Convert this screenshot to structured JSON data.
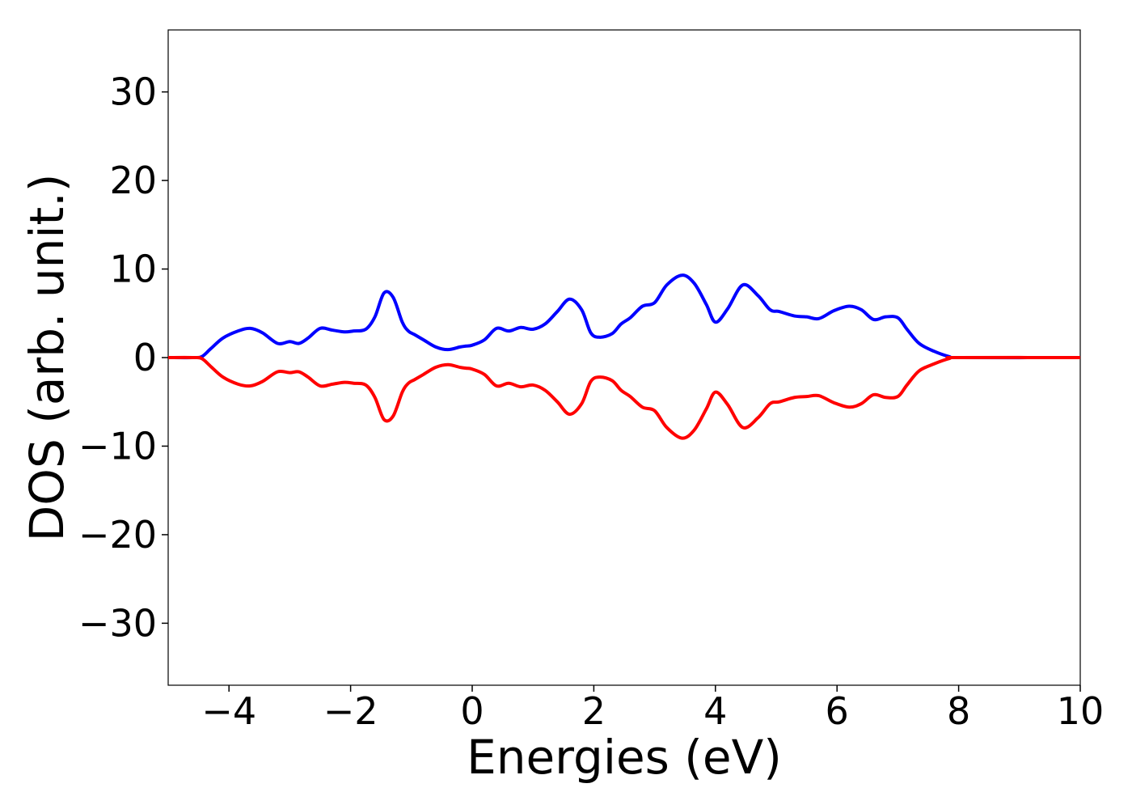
{
  "chart_data": {
    "type": "line",
    "xlabel": "Energies (eV)",
    "ylabel": "DOS (arb. unit.)",
    "xlim": [
      -5,
      10
    ],
    "ylim": [
      -37,
      37
    ],
    "grid": false,
    "xticks": [
      -4,
      -2,
      0,
      2,
      4,
      6,
      8,
      10
    ],
    "xtick_labels": [
      "−4",
      "−2",
      "0",
      "2",
      "4",
      "6",
      "8",
      "10"
    ],
    "yticks": [
      -30,
      -20,
      -10,
      0,
      10,
      20,
      30
    ],
    "ytick_labels": [
      "−30",
      "−20",
      "−10",
      "0",
      "10",
      "20",
      "30"
    ],
    "series": [
      {
        "color": "#0000ff",
        "x": [
          -5.0,
          -4.6,
          -4.45,
          -4.3,
          -4.1,
          -3.85,
          -3.65,
          -3.45,
          -3.2,
          -3.0,
          -2.85,
          -2.7,
          -2.5,
          -2.3,
          -2.1,
          -1.95,
          -1.75,
          -1.6,
          -1.45,
          -1.3,
          -1.15,
          -1.05,
          -0.95,
          -0.8,
          -0.6,
          -0.4,
          -0.2,
          -0.1,
          0.0,
          0.2,
          0.4,
          0.6,
          0.8,
          1.0,
          1.2,
          1.4,
          1.6,
          1.8,
          1.95,
          2.1,
          2.3,
          2.45,
          2.6,
          2.8,
          3.0,
          3.2,
          3.45,
          3.65,
          3.85,
          4.0,
          4.2,
          4.45,
          4.7,
          4.9,
          5.05,
          5.3,
          5.5,
          5.7,
          5.95,
          6.2,
          6.4,
          6.6,
          6.8,
          7.0,
          7.15,
          7.35,
          7.6,
          7.85,
          8.0,
          10.0
        ],
        "values": [
          0,
          0,
          0.1,
          1.0,
          2.2,
          3.0,
          3.3,
          2.8,
          1.6,
          1.8,
          1.6,
          2.2,
          3.3,
          3.1,
          2.9,
          3.0,
          3.2,
          4.6,
          7.3,
          6.8,
          4.0,
          3.0,
          2.6,
          2.0,
          1.2,
          0.9,
          1.2,
          1.3,
          1.4,
          2.0,
          3.3,
          3.0,
          3.4,
          3.2,
          3.8,
          5.2,
          6.6,
          5.4,
          2.8,
          2.3,
          2.7,
          3.8,
          4.5,
          5.8,
          6.2,
          8.2,
          9.3,
          8.4,
          6.0,
          4.0,
          5.5,
          8.2,
          7.0,
          5.4,
          5.2,
          4.7,
          4.6,
          4.4,
          5.3,
          5.8,
          5.4,
          4.3,
          4.6,
          4.5,
          3.2,
          1.6,
          0.7,
          0.1,
          0,
          0
        ]
      },
      {
        "color": "#ff0000",
        "x": [
          -5.0,
          -4.6,
          -4.45,
          -4.3,
          -4.1,
          -3.85,
          -3.65,
          -3.45,
          -3.2,
          -3.0,
          -2.85,
          -2.7,
          -2.5,
          -2.3,
          -2.1,
          -1.95,
          -1.75,
          -1.6,
          -1.45,
          -1.3,
          -1.15,
          -1.05,
          -0.95,
          -0.8,
          -0.6,
          -0.4,
          -0.2,
          -0.1,
          0.0,
          0.2,
          0.4,
          0.6,
          0.8,
          1.0,
          1.2,
          1.4,
          1.6,
          1.8,
          1.95,
          2.1,
          2.3,
          2.45,
          2.6,
          2.8,
          3.0,
          3.2,
          3.45,
          3.65,
          3.85,
          4.0,
          4.2,
          4.45,
          4.7,
          4.9,
          5.05,
          5.3,
          5.5,
          5.7,
          5.95,
          6.2,
          6.4,
          6.6,
          6.8,
          7.0,
          7.15,
          7.35,
          7.6,
          7.85,
          8.0,
          10.0
        ],
        "values": [
          0,
          0,
          -0.1,
          -1.0,
          -2.2,
          -3.0,
          -3.2,
          -2.7,
          -1.6,
          -1.7,
          -1.6,
          -2.2,
          -3.2,
          -3.0,
          -2.8,
          -2.9,
          -3.1,
          -4.5,
          -7.0,
          -6.6,
          -3.9,
          -2.9,
          -2.5,
          -1.9,
          -1.1,
          -0.8,
          -1.1,
          -1.2,
          -1.3,
          -1.9,
          -3.2,
          -2.9,
          -3.3,
          -3.1,
          -3.7,
          -5.0,
          -6.4,
          -5.2,
          -2.7,
          -2.2,
          -2.6,
          -3.7,
          -4.4,
          -5.6,
          -6.0,
          -7.9,
          -9.1,
          -8.2,
          -5.8,
          -3.9,
          -5.3,
          -7.9,
          -6.8,
          -5.2,
          -5.0,
          -4.5,
          -4.4,
          -4.3,
          -5.1,
          -5.6,
          -5.2,
          -4.2,
          -4.5,
          -4.4,
          -3.1,
          -1.5,
          -0.7,
          -0.1,
          0,
          0
        ]
      }
    ]
  }
}
